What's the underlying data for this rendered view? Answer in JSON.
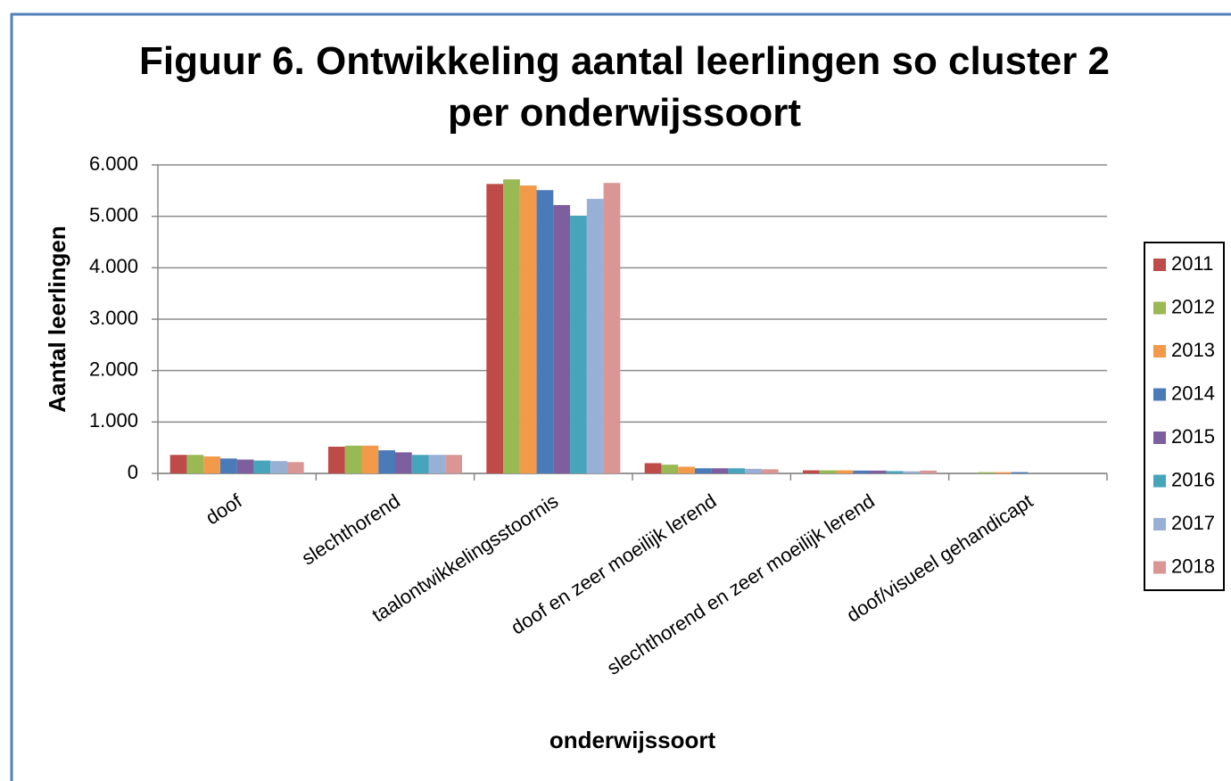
{
  "chart_data": {
    "type": "bar",
    "title": "Figuur 6. Ontwikkeling aantal leerlingen so cluster 2 per onderwijssoort",
    "x_label": "onderwijssoort",
    "y_label": "Aantal leerlingen",
    "categories": [
      "doof",
      "slechthorend",
      "taalontwikkelingsstoornis",
      "doof en zeer moeilijk lerend",
      "slechthorend en zeer moeilijk lerend",
      "doof/visueel gehandicapt"
    ],
    "series": [
      {
        "name": "2011",
        "color": "#be4b48",
        "values": [
          360,
          520,
          5630,
          200,
          60,
          0
        ]
      },
      {
        "name": "2012",
        "color": "#98b954",
        "values": [
          360,
          540,
          5720,
          170,
          60,
          25
        ]
      },
      {
        "name": "2013",
        "color": "#f39a4a",
        "values": [
          330,
          540,
          5600,
          130,
          60,
          25
        ]
      },
      {
        "name": "2014",
        "color": "#4a7ab8",
        "values": [
          290,
          450,
          5510,
          100,
          55,
          25
        ]
      },
      {
        "name": "2015",
        "color": "#7d5f9f",
        "values": [
          270,
          410,
          5220,
          100,
          55,
          0
        ]
      },
      {
        "name": "2016",
        "color": "#46a5bd",
        "values": [
          250,
          360,
          5010,
          100,
          45,
          0
        ]
      },
      {
        "name": "2017",
        "color": "#98b0d6",
        "values": [
          240,
          360,
          5340,
          90,
          40,
          0
        ]
      },
      {
        "name": "2018",
        "color": "#d99694",
        "values": [
          220,
          360,
          5650,
          80,
          55,
          0
        ]
      }
    ],
    "ylim": [
      0,
      6000
    ],
    "yticks": [
      0,
      {
        "value": 1000,
        "label": "1.000"
      },
      {
        "value": 2000,
        "label": "2.000"
      },
      {
        "value": 3000,
        "label": "3.000"
      },
      {
        "value": 4000,
        "label": "4.000"
      },
      {
        "value": 5000,
        "label": "5.000"
      },
      {
        "value": 6000,
        "label": "6.000"
      }
    ],
    "grid": true,
    "legend": "right"
  }
}
